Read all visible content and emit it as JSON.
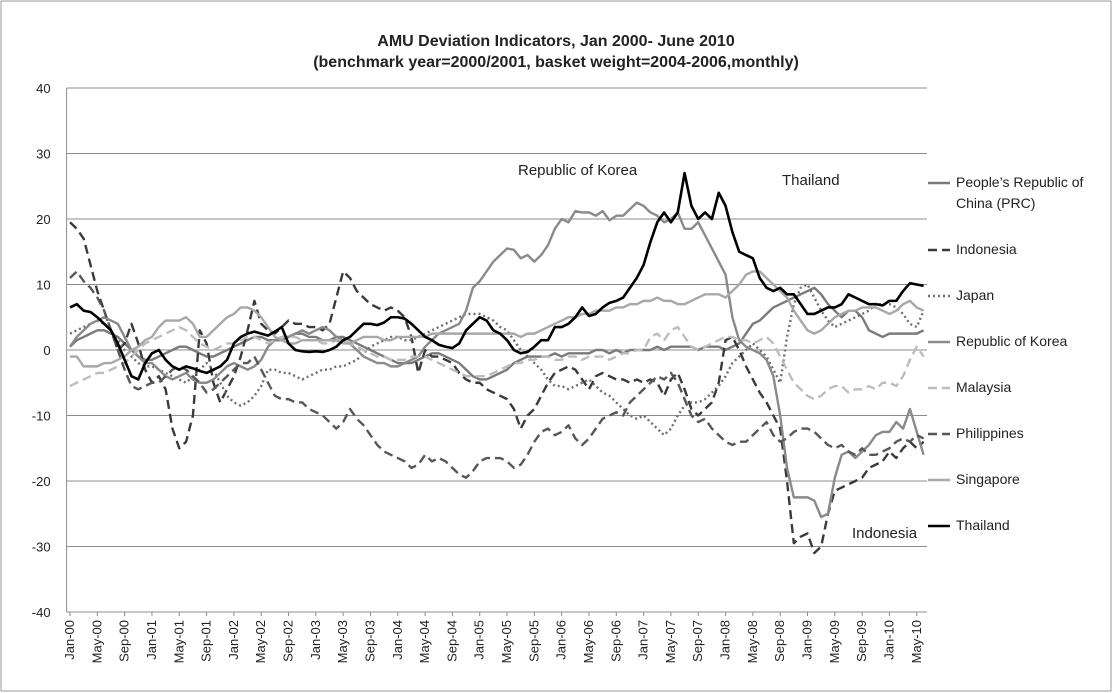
{
  "chart_data": {
    "type": "line",
    "title": "AMU Deviation Indicators, Jan 2000- June 2010",
    "subtitle": "(benchmark year=2000/2001, basket weight=2004-2006,monthly)",
    "annotations": [
      "Republic of Korea",
      "Thailand",
      "Indonesia"
    ],
    "categories": [
      "Jan-00",
      null,
      null,
      null,
      "May-00",
      null,
      null,
      null,
      "Sep-00",
      null,
      null,
      null,
      "Jan-01",
      null,
      null,
      null,
      "May-01",
      null,
      null,
      null,
      "Sep-01",
      null,
      null,
      null,
      "Jan-02",
      null,
      null,
      null,
      "May-02",
      null,
      null,
      null,
      "Sep-02",
      null,
      null,
      null,
      "Jan-03",
      null,
      null,
      null,
      "May-03",
      null,
      null,
      null,
      "Sep-03",
      null,
      null,
      null,
      "Jan-04",
      null,
      null,
      null,
      "May-04",
      null,
      null,
      null,
      "Sep-04",
      null,
      null,
      null,
      "Jan-05",
      null,
      null,
      null,
      "May-05",
      null,
      null,
      null,
      "Sep-05",
      null,
      null,
      null,
      "Jan-06",
      null,
      null,
      null,
      "May-06",
      null,
      null,
      null,
      "Sep-06",
      null,
      null,
      null,
      "Jan-07",
      null,
      null,
      null,
      "May-07",
      null,
      null,
      null,
      "Sep-07",
      null,
      null,
      null,
      "Jan-08",
      null,
      null,
      null,
      "May-08",
      null,
      null,
      null,
      "Sep-08",
      null,
      null,
      null,
      "Jan-09",
      null,
      null,
      null,
      "May-09",
      null,
      null,
      null,
      "Sep-09",
      null,
      null,
      null,
      "Jan-10",
      null,
      null,
      null,
      "May-10",
      null
    ],
    "ylim": [
      -40,
      40
    ],
    "yticks": [
      -40,
      -30,
      -20,
      -10,
      0,
      10,
      20,
      30,
      40
    ],
    "grid": true,
    "legend": "right",
    "series": [
      {
        "name": "People’s Republic of China (PRC)",
        "color": "#7a7a7a",
        "style": "solid",
        "values": [
          0.5,
          1.5,
          2,
          2.5,
          3,
          3,
          2.5,
          2,
          1,
          0,
          -1,
          -1.5,
          -1.5,
          -1,
          -0.5,
          0,
          0.5,
          0.5,
          0,
          -0.5,
          -1,
          -1,
          -0.5,
          0,
          0.5,
          1,
          1.5,
          2,
          2,
          1.5,
          1.5,
          1.5,
          2,
          2.5,
          2.5,
          2,
          2,
          1.5,
          1.5,
          2,
          2,
          1.5,
          1,
          0.5,
          0,
          -0.5,
          -1,
          -1.5,
          -2,
          -2,
          -2,
          -1.5,
          -1,
          -0.5,
          -0.5,
          -1,
          -1.5,
          -2,
          -3,
          -4,
          -4.5,
          -4.5,
          -4,
          -3.5,
          -3,
          -2,
          -1.5,
          -1,
          -1,
          -1,
          -1,
          -0.5,
          -1,
          -0.5,
          -0.5,
          -0.5,
          -0.5,
          0,
          0,
          -0.5,
          0,
          -0.5,
          0,
          0,
          0,
          0,
          0.5,
          0,
          0.5,
          0.5,
          0.5,
          0.5,
          0,
          0.5,
          0.5,
          0.5,
          0,
          0.5,
          1,
          2.5,
          4,
          4.5,
          5.5,
          6.5,
          7,
          7.5,
          8,
          8.5,
          9,
          9.5,
          8.5,
          7,
          6,
          5,
          6,
          6,
          5,
          3,
          2.5,
          2,
          2.5,
          2.5,
          2.5,
          2.5,
          2.5,
          3
        ]
      },
      {
        "name": "Indonesia",
        "color": "#3a3a3a",
        "style": "dashed",
        "values": [
          19.5,
          18.5,
          17,
          13,
          9,
          6,
          3,
          0,
          1,
          4,
          1,
          -3,
          -5,
          -4,
          -6,
          -12,
          -15,
          -14,
          -10,
          3,
          1,
          -5,
          -8,
          -6,
          -4,
          -1,
          3,
          7.5,
          4,
          3,
          2.5,
          3.5,
          4.5,
          4,
          4,
          3.5,
          3.5,
          3,
          4,
          8,
          12,
          11,
          9,
          8,
          7,
          6.5,
          6,
          6.5,
          6,
          5,
          2,
          -3.5,
          0,
          -1,
          -1,
          -1.5,
          -2,
          -3.5,
          -4.5,
          -5,
          -5,
          -6,
          -6.5,
          -7,
          -7.5,
          -9,
          -12,
          -10,
          -9,
          -7,
          -5,
          -3.5,
          -3,
          -2.5,
          -3,
          -4.5,
          -6,
          -4,
          -3.5,
          -4,
          -4.5,
          -4.5,
          -5,
          -4.5,
          -5,
          -4.5,
          -5,
          -7,
          -4.5,
          -3.5,
          -6,
          -9,
          -10,
          -9,
          -8,
          -5,
          1.5,
          2,
          0,
          -2.5,
          -4.5,
          -6.5,
          -8,
          -10,
          -12,
          -20,
          -29.5,
          -28.5,
          -28,
          -31,
          -30,
          -25,
          -21.5,
          -21,
          -20.5,
          -20,
          -19.5,
          -18,
          -17.5,
          -17,
          -15.5,
          -16.5,
          -15,
          -14,
          -15,
          -14
        ]
      },
      {
        "name": "Japan",
        "color": "#6e6e6e",
        "style": "dotted",
        "values": [
          2.5,
          3,
          3.5,
          4,
          4.5,
          4,
          3,
          1.5,
          0,
          -1,
          -2,
          -2.5,
          -2.5,
          -3,
          -3.5,
          -4,
          -4.5,
          -5,
          -4,
          -3,
          -2,
          -3,
          -5,
          -7,
          -8,
          -8.5,
          -8,
          -7,
          -5.5,
          -3,
          -3,
          -3.5,
          -3.5,
          -4,
          -4.5,
          -4,
          -3.5,
          -3,
          -3,
          -2.5,
          -2.5,
          -2,
          -1.5,
          -0.5,
          0.5,
          1,
          1.5,
          2,
          2,
          1.5,
          1.5,
          2,
          2.5,
          3,
          3.5,
          4,
          4.5,
          5,
          5.5,
          5.5,
          5.5,
          5,
          4.5,
          3.5,
          3,
          1.5,
          0,
          -1,
          -2,
          -3,
          -4.5,
          -5.5,
          -5.5,
          -6,
          -5.5,
          -5,
          -4.5,
          -5.5,
          -6.5,
          -7,
          -8,
          -9,
          -10,
          -10.5,
          -10,
          -11,
          -12,
          -13,
          -12,
          -10,
          -8.5,
          -8,
          -8,
          -7.5,
          -6.5,
          -5.5,
          -4,
          -2,
          -1,
          0,
          1,
          0,
          -1,
          -3,
          -5,
          2,
          7,
          9.5,
          10,
          8,
          6,
          4.5,
          3.5,
          4,
          4.5,
          5,
          5.5,
          6,
          7,
          7,
          7,
          6.5,
          5.5,
          4,
          3.5,
          6
        ]
      },
      {
        "name": "Republic of Korea",
        "color": "#8a8a8a",
        "style": "solid",
        "values": [
          0.5,
          2,
          3,
          4,
          4.5,
          5,
          4.5,
          4,
          2,
          0,
          -1,
          -2,
          -2,
          -3,
          -4,
          -4.5,
          -4,
          -3.5,
          -4.5,
          -5,
          -5,
          -4.5,
          -3.5,
          -2.5,
          -2,
          -2.5,
          -3,
          -2.5,
          -1.5,
          0.5,
          1.5,
          2,
          2,
          2.5,
          3,
          2.5,
          3,
          3.5,
          3,
          2,
          1.5,
          1,
          0,
          -1,
          -1.5,
          -2,
          -2,
          -2.5,
          -2.5,
          -2,
          -1.5,
          -1,
          0.5,
          1.5,
          2.5,
          3,
          3.5,
          4,
          6,
          9.5,
          10.5,
          12,
          13.5,
          14.5,
          15.5,
          15.3,
          14,
          14.5,
          13.5,
          14.5,
          16,
          18.5,
          20,
          19.5,
          21.2,
          21,
          21,
          20.5,
          21.2,
          19.8,
          20.5,
          20.5,
          21.5,
          22.5,
          22,
          21,
          20.5,
          19.5,
          20,
          21,
          18.5,
          18.5,
          19.5,
          17.5,
          15.5,
          13.5,
          11.5,
          5,
          1.5,
          0.5,
          0,
          -0.5,
          -1.5,
          -4,
          -10,
          -18,
          -22.5,
          -22.5,
          -22.5,
          -23,
          -25.5,
          -25,
          -19.5,
          -16,
          -15.5,
          -16.5,
          -15.5,
          -14.5,
          -13,
          -12.5,
          -12.5,
          -11,
          -12,
          -9,
          -12.5,
          -16
        ]
      },
      {
        "name": "Malaysia",
        "color": "#bdbdbd",
        "style": "dashed",
        "values": [
          -5.5,
          -5,
          -4.5,
          -4,
          -3.5,
          -3.5,
          -3,
          -2.5,
          -2,
          -1,
          0,
          1,
          1.5,
          2,
          2.5,
          3,
          3.5,
          3,
          2,
          1,
          0.5,
          0,
          0.5,
          1,
          1,
          1.5,
          2,
          2,
          1.5,
          1,
          1.5,
          2,
          2,
          2,
          1.5,
          1.5,
          1.5,
          1,
          1,
          1.5,
          1.5,
          1,
          0.5,
          0,
          -0.5,
          -1,
          -1,
          -1.5,
          -1.5,
          -1.5,
          -1,
          -1,
          -1,
          -1.5,
          -2,
          -2.5,
          -3,
          -3.5,
          -4,
          -4,
          -4,
          -4,
          -3.5,
          -3,
          -2.5,
          -2,
          -2,
          -1.5,
          -1.5,
          -1,
          -1,
          -1.5,
          -1.5,
          -1,
          -1,
          -1.5,
          -1,
          -1,
          -1,
          -1.5,
          -1,
          -0.5,
          -0.5,
          0,
          0,
          2,
          2.5,
          1.5,
          3,
          3.5,
          2,
          0.5,
          0,
          0.5,
          1,
          1.5,
          2,
          2,
          1.5,
          1.5,
          1,
          1.5,
          2,
          1,
          -1,
          -3,
          -5,
          -6,
          -7,
          -7.5,
          -7,
          -6,
          -5.5,
          -5.5,
          -6.5,
          -6,
          -6,
          -5.5,
          -6,
          -5,
          -5,
          -5.5,
          -4,
          -1.5,
          0.5,
          -1
        ]
      },
      {
        "name": "Philippines",
        "color": "#575757",
        "style": "dashed",
        "values": [
          11,
          12,
          10.5,
          9.5,
          8,
          6,
          3,
          0,
          -3,
          -5.5,
          -6,
          -5.5,
          -5,
          -5,
          -4,
          -3,
          -2.5,
          -3,
          -4,
          -5,
          -6.5,
          -6,
          -5,
          -4,
          -3,
          -2,
          -2,
          -1,
          -3,
          -5,
          -7,
          -7.5,
          -7.5,
          -8,
          -8,
          -9,
          -9.5,
          -10,
          -11,
          -12,
          -11,
          -9,
          -10.5,
          -11.5,
          -13,
          -14.5,
          -15.5,
          -16,
          -16.5,
          -17,
          -18,
          -17.5,
          -16,
          -17,
          -16.5,
          -17,
          -18,
          -19,
          -19.5,
          -18.5,
          -17,
          -16.5,
          -16.5,
          -16.5,
          -17,
          -18,
          -17.5,
          -16,
          -14,
          -12.5,
          -12,
          -13,
          -12.5,
          -11.5,
          -13.5,
          -14.5,
          -13.5,
          -12,
          -10.5,
          -10,
          -9.5,
          -10,
          -8,
          -7,
          -6,
          -5,
          -4,
          -4.5,
          -3.5,
          -5,
          -7.5,
          -10,
          -11,
          -10.5,
          -12,
          -13,
          -14,
          -14.5,
          -14,
          -14,
          -13,
          -12,
          -11,
          -13,
          -14,
          -13.5,
          -12.5,
          -12,
          -12,
          -12.5,
          -13.5,
          -14.5,
          -15,
          -14.5,
          -15.5,
          -16,
          -15,
          -16,
          -16,
          -15.5,
          -15,
          -14,
          -13.5,
          -14,
          -13,
          -13.5
        ]
      },
      {
        "name": "Singapore",
        "color": "#a8a8a8",
        "style": "solid",
        "values": [
          -1,
          -1,
          -2.5,
          -2.5,
          -2.5,
          -2,
          -2,
          -1.5,
          -1,
          0,
          0.5,
          1.5,
          2,
          3.5,
          4.5,
          4.5,
          4.5,
          5,
          4,
          2,
          2,
          3,
          4,
          5,
          5.5,
          6.5,
          6.5,
          6,
          5,
          3.5,
          2,
          1.5,
          1,
          1,
          1.5,
          1.5,
          1.5,
          1.5,
          1.5,
          1.5,
          1,
          1,
          1.5,
          2,
          2,
          2,
          1.5,
          1.5,
          2,
          2,
          2,
          2,
          2,
          2.5,
          2.5,
          2.5,
          2.5,
          2.5,
          2.5,
          2.5,
          2.5,
          2.5,
          2.5,
          2.5,
          2.5,
          2.5,
          2,
          2.5,
          2.5,
          3,
          3.5,
          4,
          4.5,
          5,
          5,
          5.5,
          5.5,
          6,
          6,
          6,
          6.5,
          6.5,
          7,
          7,
          7.5,
          7.5,
          8,
          7.5,
          7.5,
          7,
          7,
          7.5,
          8,
          8.5,
          8.5,
          8.5,
          8,
          9,
          10,
          11.5,
          12,
          12,
          11,
          10,
          9,
          8,
          6,
          4.5,
          3,
          2.5,
          3,
          4,
          5,
          5.5,
          6,
          6,
          6.5,
          6.5,
          6.5,
          6,
          5.5,
          6,
          7,
          7.5,
          6.5,
          6
        ]
      },
      {
        "name": "Thailand",
        "color": "#000000",
        "style": "solid",
        "values": [
          6.5,
          7,
          6,
          5.8,
          5,
          4,
          3,
          1,
          -1.5,
          -4,
          -4.5,
          -2,
          -0.5,
          0,
          -1.5,
          -2.5,
          -3,
          -2.5,
          -2.8,
          -3.2,
          -3.5,
          -3,
          -2.5,
          -1.5,
          1,
          2,
          2.5,
          2.8,
          2.5,
          2.2,
          2.8,
          3.5,
          1,
          0,
          -0.2,
          -0.3,
          -0.2,
          -0.3,
          0,
          0.5,
          1.5,
          2,
          3,
          4,
          4,
          3.8,
          4.2,
          5,
          5,
          4.8,
          4,
          3,
          2,
          1.5,
          0.8,
          0.5,
          0.3,
          1,
          3,
          4,
          5,
          4.5,
          3,
          2.5,
          1.5,
          0,
          -0.5,
          -0.3,
          0.5,
          1.5,
          1.5,
          3.5,
          3.5,
          4,
          5,
          6.5,
          5.2,
          5.5,
          6.5,
          7.2,
          7.5,
          8,
          9.5,
          11,
          13,
          16.5,
          19.5,
          21,
          19.5,
          21,
          27,
          22,
          20,
          21,
          20,
          24,
          22,
          18,
          15,
          14.5,
          14,
          11,
          9.5,
          9,
          9.5,
          8.5,
          8.5,
          7,
          5.5,
          5.5,
          6,
          6.5,
          6.5,
          7,
          8.5,
          8,
          7.5,
          7,
          7,
          6.8,
          7.5,
          7.5,
          9,
          10.2,
          10,
          9.8
        ]
      }
    ]
  }
}
